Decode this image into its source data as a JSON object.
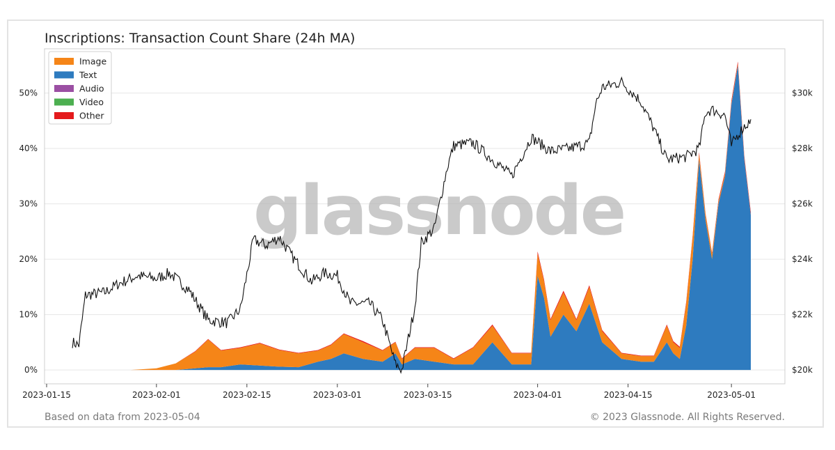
{
  "chart_data": {
    "type": "area",
    "title": "Inscriptions: Transaction Count Share (24h MA)",
    "watermark": "glassnode",
    "footer_left": "Based on data from 2023-05-04",
    "footer_right": "© 2023 Glassnode. All Rights Reserved.",
    "x_ticks": [
      "2023-01-15",
      "2023-02-01",
      "2023-02-15",
      "2023-03-01",
      "2023-03-15",
      "2023-04-01",
      "2023-04-15",
      "2023-05-01"
    ],
    "y_left_ticks": [
      "0%",
      "10%",
      "20%",
      "30%",
      "40%",
      "50%"
    ],
    "y_left_range": [
      -2.5,
      58
    ],
    "y_right_ticks": [
      "$20k",
      "$22k",
      "$24k",
      "$26k",
      "$28k",
      "$30k"
    ],
    "y_right_range": [
      19500,
      31600
    ],
    "x_range_days": [
      "2023-01-15",
      "2023-05-04"
    ],
    "legend": [
      {
        "label": "Image",
        "color": "#f58518"
      },
      {
        "label": "Text",
        "color": "#2e7bbf"
      },
      {
        "label": "Audio",
        "color": "#9b4fa3"
      },
      {
        "label": "Video",
        "color": "#4caf50"
      },
      {
        "label": "Other",
        "color": "#e41a1c"
      }
    ],
    "legend_position": "top-left",
    "grid": true,
    "stack_dates": [
      "2023-01-20",
      "2023-01-28",
      "2023-02-01",
      "2023-02-04",
      "2023-02-07",
      "2023-02-09",
      "2023-02-11",
      "2023-02-14",
      "2023-02-17",
      "2023-02-20",
      "2023-02-23",
      "2023-02-26",
      "2023-02-28",
      "2023-03-02",
      "2023-03-05",
      "2023-03-08",
      "2023-03-10",
      "2023-03-11",
      "2023-03-13",
      "2023-03-16",
      "2023-03-19",
      "2023-03-22",
      "2023-03-25",
      "2023-03-28",
      "2023-03-31",
      "2023-04-01",
      "2023-04-02",
      "2023-04-03",
      "2023-04-05",
      "2023-04-07",
      "2023-04-09",
      "2023-04-11",
      "2023-04-14",
      "2023-04-17",
      "2023-04-19",
      "2023-04-21",
      "2023-04-22",
      "2023-04-23",
      "2023-04-24",
      "2023-04-25",
      "2023-04-26",
      "2023-04-27",
      "2023-04-28",
      "2023-04-29",
      "2023-04-30",
      "2023-05-01",
      "2023-05-02",
      "2023-05-03",
      "2023-05-04"
    ],
    "series": [
      {
        "name": "Text",
        "values": [
          0,
          0,
          0,
          0,
          0.3,
          0.5,
          0.5,
          1,
          0.8,
          0.6,
          0.5,
          1.5,
          2,
          3,
          2,
          1.5,
          3,
          1,
          2,
          1.5,
          1,
          1,
          5,
          1,
          1,
          17,
          13,
          6,
          10,
          7,
          12,
          5,
          2,
          1.5,
          1.5,
          5,
          3,
          2,
          8,
          20,
          38,
          27,
          20,
          30,
          35,
          48,
          55,
          38,
          28
        ]
      },
      {
        "name": "Image",
        "values": [
          0,
          0,
          0.3,
          1.2,
          3,
          5,
          3,
          3,
          4,
          3,
          2.5,
          2,
          2.5,
          3.5,
          3,
          2,
          2,
          1,
          2,
          2.5,
          1,
          3,
          3,
          2,
          2,
          4,
          3,
          3,
          4,
          2,
          3,
          2,
          1,
          1,
          1,
          3,
          2,
          2,
          4,
          4,
          1,
          1,
          1,
          0.5,
          0.5,
          0.3,
          0.3,
          0.2,
          0.1
        ]
      },
      {
        "name": "Other",
        "values": [
          0,
          0,
          0,
          0,
          0.1,
          0.1,
          0.1,
          0.1,
          0.1,
          0.1,
          0.1,
          0.1,
          0.1,
          0.1,
          0.2,
          0.1,
          0.1,
          0.1,
          0.1,
          0.1,
          0.1,
          0.1,
          0.2,
          0.1,
          0.1,
          0.4,
          0.3,
          0.2,
          0.3,
          0.2,
          0.3,
          0.2,
          0.1,
          0.1,
          0.1,
          0.2,
          0.2,
          0.2,
          0.3,
          0.3,
          0.3,
          0.2,
          0.2,
          0.3,
          0.3,
          0.4,
          0.4,
          0.4,
          0.4
        ]
      }
    ],
    "price_dates": [
      "2023-01-19",
      "2023-01-20",
      "2023-01-21",
      "2023-01-24",
      "2023-01-26",
      "2023-01-29",
      "2023-02-01",
      "2023-02-03",
      "2023-02-06",
      "2023-02-09",
      "2023-02-12",
      "2023-02-14",
      "2023-02-16",
      "2023-02-18",
      "2023-02-20",
      "2023-02-22",
      "2023-02-25",
      "2023-02-27",
      "2023-03-01",
      "2023-03-03",
      "2023-03-06",
      "2023-03-08",
      "2023-03-10",
      "2023-03-11",
      "2023-03-13",
      "2023-03-14",
      "2023-03-16",
      "2023-03-18",
      "2023-03-19",
      "2023-03-22",
      "2023-03-25",
      "2023-03-28",
      "2023-03-31",
      "2023-04-03",
      "2023-04-06",
      "2023-04-09",
      "2023-04-10",
      "2023-04-11",
      "2023-04-14",
      "2023-04-17",
      "2023-04-19",
      "2023-04-21",
      "2023-04-24",
      "2023-04-26",
      "2023-04-27",
      "2023-04-28",
      "2023-04-30",
      "2023-05-01",
      "2023-05-02",
      "2023-05-03",
      "2023-05-04"
    ],
    "price_values": [
      21000,
      20900,
      22700,
      22800,
      23100,
      23400,
      23300,
      23500,
      22900,
      21800,
      21700,
      22200,
      24700,
      24500,
      24800,
      24100,
      23200,
      23500,
      23400,
      22400,
      22400,
      21800,
      20200,
      20000,
      22300,
      24600,
      25100,
      27300,
      28100,
      28200,
      27600,
      27000,
      28400,
      27900,
      28000,
      28200,
      29600,
      30200,
      30400,
      29700,
      28700,
      27600,
      27700,
      28000,
      29300,
      29400,
      29200,
      28100,
      28500,
      28800,
      29000
    ]
  }
}
